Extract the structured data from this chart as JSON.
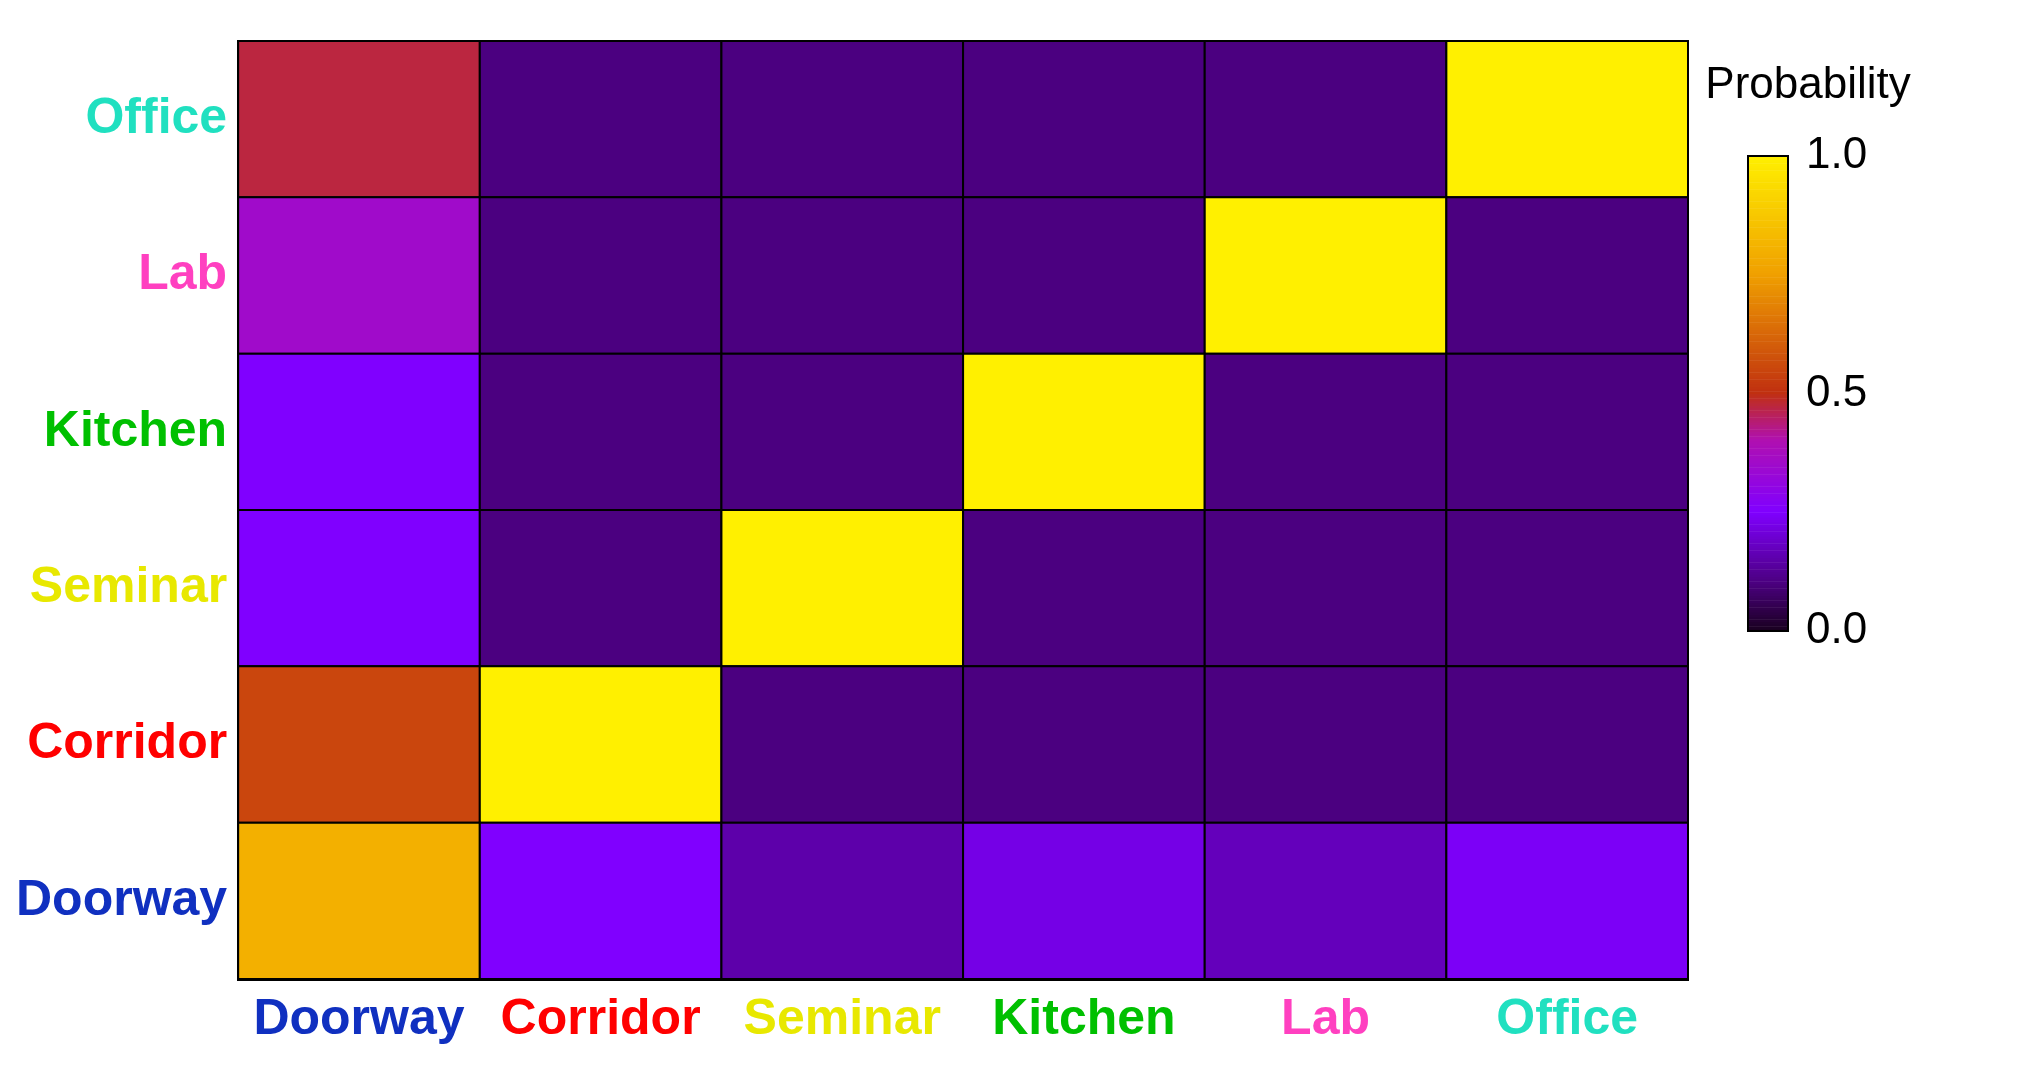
{
  "chart_data": {
    "type": "heatmap",
    "categories": [
      "Doorway",
      "Corridor",
      "Seminar",
      "Kitchen",
      "Lab",
      "Office"
    ],
    "y_categories": [
      "Office",
      "Lab",
      "Kitchen",
      "Seminar",
      "Corridor",
      "Doorway"
    ],
    "cells": [
      [
        0.47,
        0.1,
        0.1,
        0.1,
        0.1,
        1.0
      ],
      [
        0.35,
        0.1,
        0.1,
        0.1,
        1.0,
        0.1
      ],
      [
        0.25,
        0.1,
        0.1,
        1.0,
        0.1,
        0.1
      ],
      [
        0.25,
        0.1,
        1.0,
        0.1,
        0.1,
        0.1
      ],
      [
        0.55,
        1.0,
        0.1,
        0.1,
        0.1,
        0.1
      ],
      [
        0.8,
        0.25,
        0.15,
        0.22,
        0.17,
        0.24
      ]
    ],
    "clabel": "Probability",
    "clim": [
      0,
      1
    ],
    "cticks": [
      {
        "value": 0,
        "label": "0.0"
      },
      {
        "value": 0.5,
        "label": "0.5"
      },
      {
        "value": 1,
        "label": "1.0"
      }
    ]
  }
}
